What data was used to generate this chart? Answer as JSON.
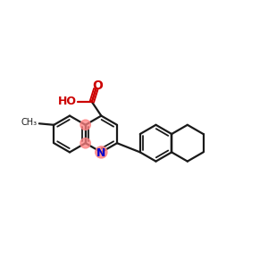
{
  "background_color": "#ffffff",
  "bond_color": "#1a1a1a",
  "N_color": "#0000cc",
  "O_color": "#cc0000",
  "highlight_color": "#ff8080",
  "lw": 1.6,
  "lw_inner": 1.3,
  "r_ring": 0.68,
  "figsize": [
    3.0,
    3.0
  ],
  "dpi": 100,
  "xlim": [
    0,
    10
  ],
  "ylim": [
    1,
    8
  ]
}
